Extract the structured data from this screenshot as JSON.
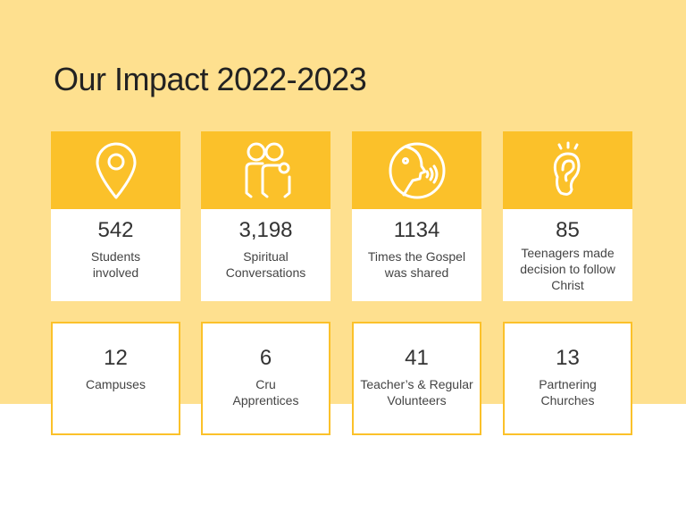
{
  "title": "Our Impact 2022-2023",
  "colors": {
    "background": "#fee08f",
    "accent": "#fbc12a"
  },
  "stats_top": [
    {
      "icon": "map-pin-icon",
      "value": "542",
      "label": "Students involved"
    },
    {
      "icon": "people-icon",
      "value": "3,198",
      "label": "Spiritual Conversations"
    },
    {
      "icon": "speaking-head-icon",
      "value": "1134",
      "label": "Times the Gospel was shared"
    },
    {
      "icon": "ear-icon",
      "value": "85",
      "label": "Teenagers made decision to follow Christ"
    }
  ],
  "stats_bottom": [
    {
      "value": "12",
      "label": "Campuses"
    },
    {
      "value": "6",
      "label": "Cru Apprentices"
    },
    {
      "value": "41",
      "label": "Teacher’s & Regular Volunteers"
    },
    {
      "value": "13",
      "label": "Partnering Churches"
    }
  ]
}
